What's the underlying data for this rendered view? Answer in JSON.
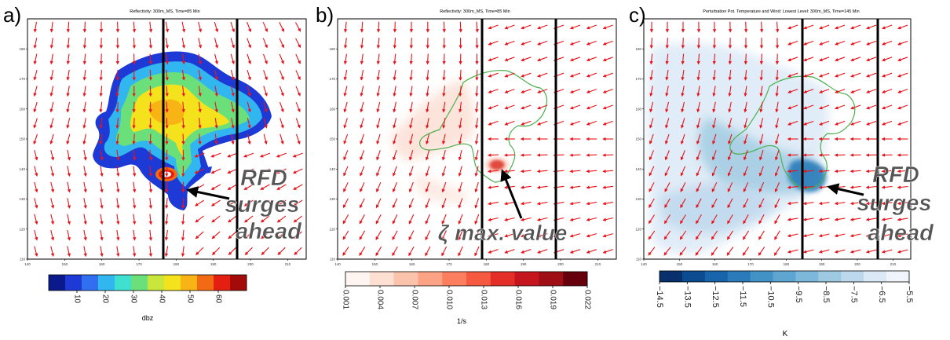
{
  "colors": {
    "arrow": "#e8141b",
    "line": "#000000",
    "contour": "#4caf50",
    "frame": "#000000"
  },
  "chart_data": [
    {
      "panel": "a)",
      "type": "heatmap",
      "title": "Reflectivity: 300m_MS, Time=85 Min",
      "xlim": [
        140,
        215
      ],
      "ylim": [
        110,
        190
      ],
      "xticks": [
        140,
        150,
        160,
        170,
        180,
        190,
        200,
        210
      ],
      "yticks": [
        110,
        120,
        130,
        140,
        150,
        160,
        170,
        180
      ],
      "vertical_lines_x": [
        180,
        199
      ],
      "annotation": {
        "text_lines": [
          "RFD",
          "surges",
          "ahead"
        ],
        "arrow_to": [
          185,
          134
        ]
      },
      "colorbar": {
        "label": "dbz",
        "ticks": [
          "10",
          "20",
          "30",
          "40",
          "50",
          "60"
        ],
        "colors": [
          "#0a1a8c",
          "#1d3ad6",
          "#2f6ff0",
          "#32b6f0",
          "#40e0d0",
          "#6be07a",
          "#c8e63c",
          "#f4e21c",
          "#f7b414",
          "#f36a14",
          "#e51e12",
          "#a50a0a"
        ]
      }
    },
    {
      "panel": "b)",
      "type": "heatmap",
      "title": "Reflectivity: 300m_MS, Time=85 Min",
      "xlim": [
        140,
        215
      ],
      "ylim": [
        110,
        190
      ],
      "xticks": [
        140,
        150,
        160,
        170,
        180,
        190,
        200,
        210
      ],
      "yticks": [
        110,
        120,
        130,
        140,
        150,
        160,
        170,
        180
      ],
      "vertical_lines_x": [
        180,
        199
      ],
      "annotation": {
        "text_lines": [
          "ζ max. value"
        ],
        "arrow_to": [
          183,
          142
        ]
      },
      "colorbar": {
        "label": "1/s",
        "ticks": [
          "0.001",
          "0.004",
          "0.007",
          "0.010",
          "0.013",
          "0.016",
          "0.019",
          "0.022"
        ],
        "colors": [
          "#fff5f0",
          "#fee0d2",
          "#fcc3ac",
          "#fca285",
          "#fb7f5f",
          "#f5593f",
          "#e32f27",
          "#c4161c",
          "#9f0e14",
          "#67000d"
        ]
      }
    },
    {
      "panel": "c)",
      "type": "heatmap",
      "title": "Perturbation Pot. Temperature and Wind: Lowest Level: 300m_MS, Time=145 Min",
      "xlim": [
        140,
        215
      ],
      "ylim": [
        110,
        190
      ],
      "xticks": [
        140,
        150,
        160,
        170,
        180,
        190,
        200,
        210
      ],
      "yticks": [
        110,
        120,
        130,
        140,
        150,
        160,
        170,
        180
      ],
      "vertical_lines_x": [
        180,
        199
      ],
      "annotation": {
        "text_lines": [
          "RFD",
          "surges",
          "ahead"
        ],
        "arrow_to": [
          185,
          138
        ]
      },
      "colorbar": {
        "label": "K",
        "ticks": [
          "−14.5",
          "−13.5",
          "−12.5",
          "−11.5",
          "−10.5",
          "−9.5",
          "−8.5",
          "−7.5",
          "−6.5",
          "−5.5"
        ],
        "colors": [
          "#08306b",
          "#0b4b8f",
          "#1764ab",
          "#2b7bba",
          "#4292c6",
          "#5ea5d1",
          "#7db8da",
          "#9ecae1",
          "#bdd7ec",
          "#dbe9f6",
          "#eff5fb"
        ]
      }
    }
  ]
}
